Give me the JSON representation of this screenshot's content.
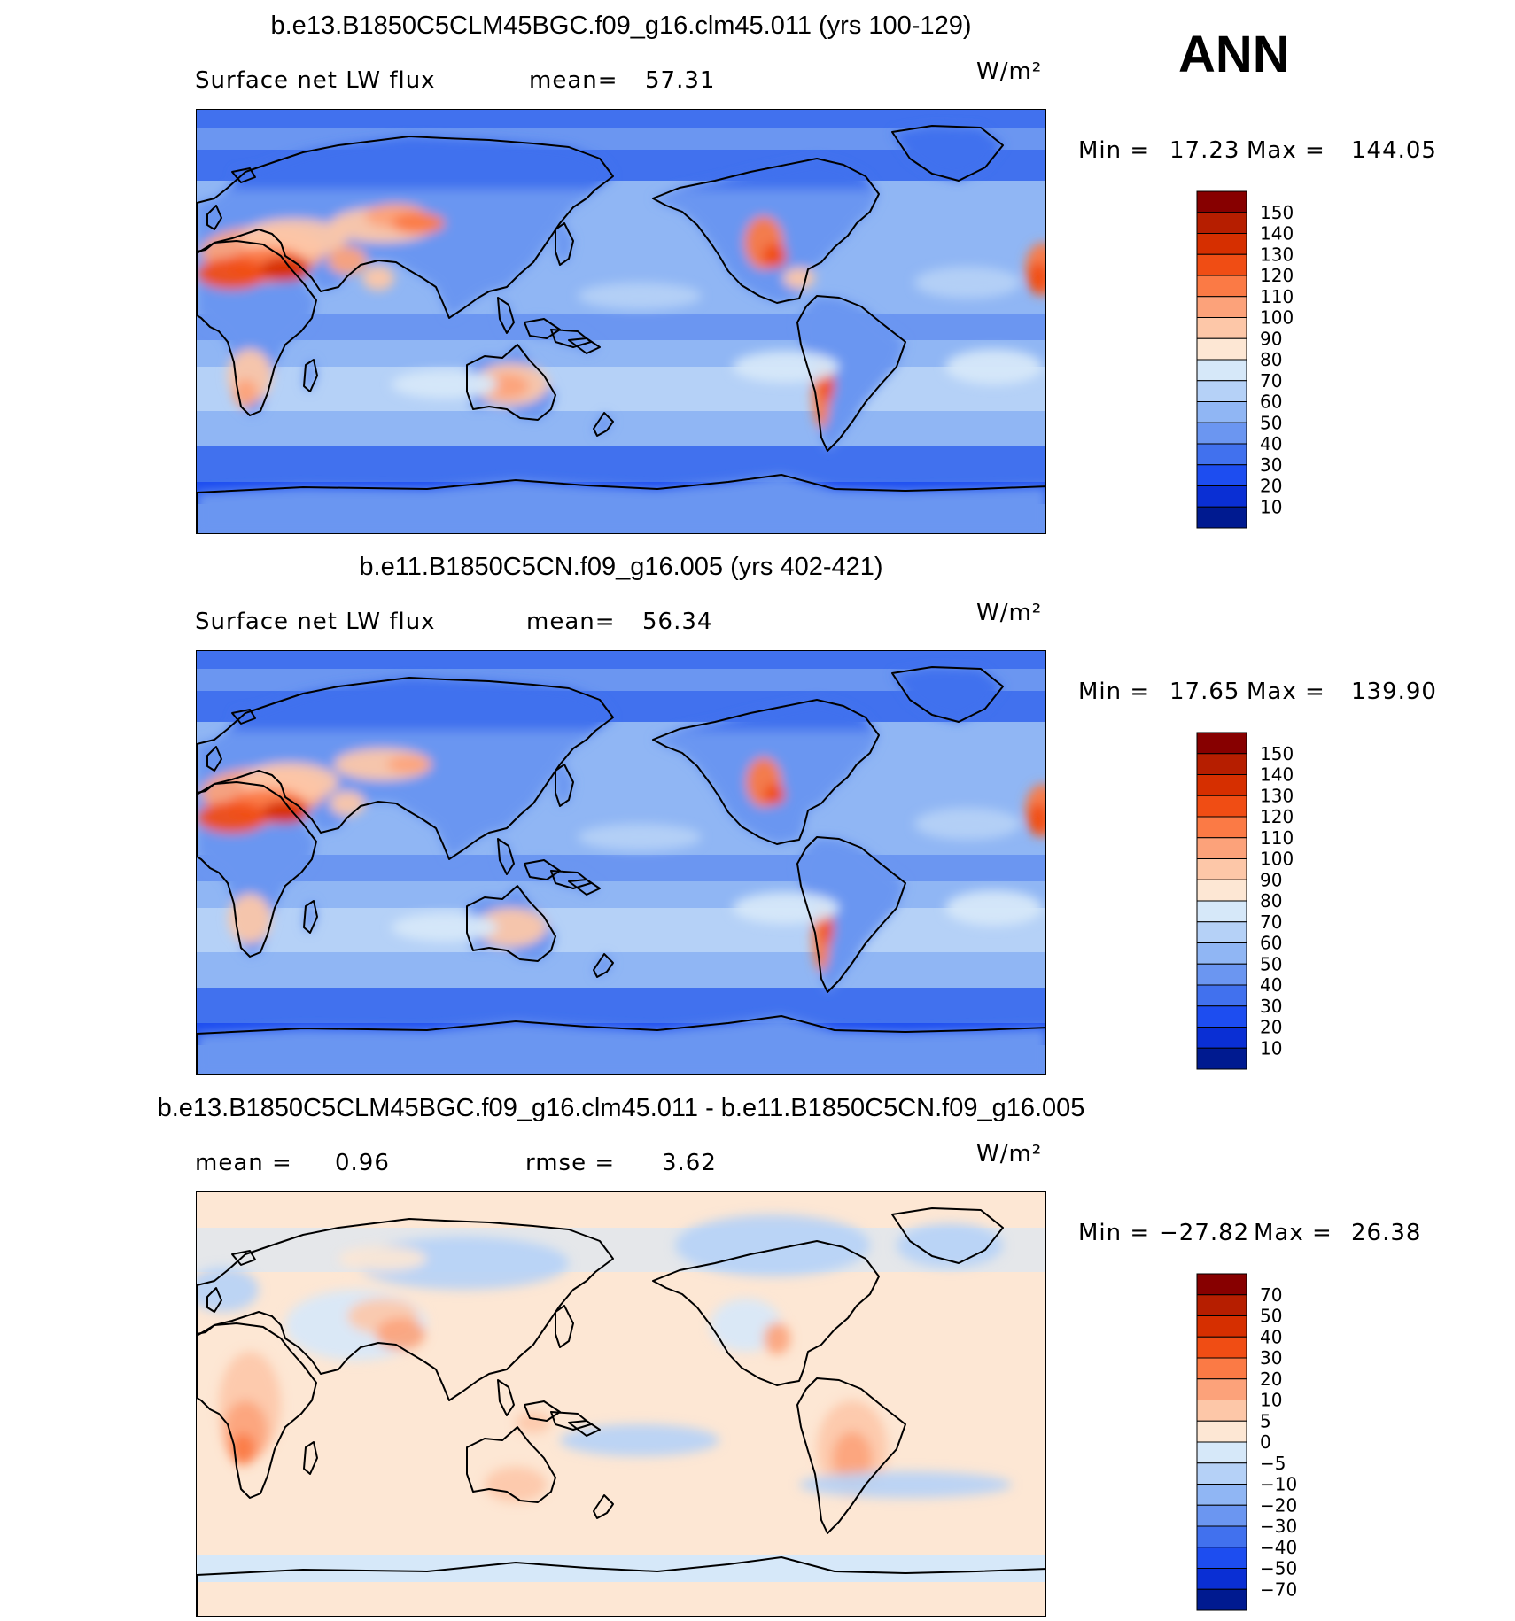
{
  "season": "ANN",
  "panels": [
    {
      "title": "b.e13.B1850C5CLM45BGC.f09_g16.clm45.011 (yrs 100-129)",
      "left_label": "Surface net LW flux",
      "mid_label": "mean=",
      "mid_value": "57.31",
      "units": "W/m²",
      "min_label": "Min =",
      "min_value": "17.23",
      "max_label": "Max =",
      "max_value": "144.05",
      "colorbar": {
        "labels": [
          "150",
          "140",
          "130",
          "120",
          "110",
          "100",
          "90",
          "80",
          "70",
          "60",
          "50",
          "40",
          "30",
          "20",
          "10"
        ],
        "colors": [
          "#870000",
          "#b61e00",
          "#d62f00",
          "#f04d14",
          "#fb7a45",
          "#fca27a",
          "#fdc7a8",
          "#fde7d4",
          "#d6e8f9",
          "#b5d1f7",
          "#90b6f4",
          "#6b96f1",
          "#4171ee",
          "#1d4df0",
          "#0a2fd4",
          "#001a90"
        ]
      },
      "map_palette": "abs"
    },
    {
      "title": "b.e11.B1850C5CN.f09_g16.005 (yrs 402-421)",
      "left_label": "Surface net LW flux",
      "mid_label": "mean=",
      "mid_value": "56.34",
      "units": "W/m²",
      "min_label": "Min =",
      "min_value": "17.65",
      "max_label": "Max =",
      "max_value": "139.90",
      "colorbar": {
        "labels": [
          "150",
          "140",
          "130",
          "120",
          "110",
          "100",
          "90",
          "80",
          "70",
          "60",
          "50",
          "40",
          "30",
          "20",
          "10"
        ],
        "colors": [
          "#870000",
          "#b61e00",
          "#d62f00",
          "#f04d14",
          "#fb7a45",
          "#fca27a",
          "#fdc7a8",
          "#fde7d4",
          "#d6e8f9",
          "#b5d1f7",
          "#90b6f4",
          "#6b96f1",
          "#4171ee",
          "#1d4df0",
          "#0a2fd4",
          "#001a90"
        ]
      },
      "map_palette": "abs"
    },
    {
      "title": "b.e13.B1850C5CLM45BGC.f09_g16.clm45.011 - b.e11.B1850C5CN.f09_g16.005",
      "left_label": "mean =",
      "left_value": "0.96",
      "mid_label": "rmse =",
      "mid_value": "3.62",
      "units": "W/m²",
      "min_label": "Min =",
      "min_value": "−27.82",
      "max_label": "Max =",
      "max_value": "26.38",
      "colorbar": {
        "labels": [
          "70",
          "50",
          "40",
          "30",
          "20",
          "10",
          "5",
          "0",
          "−5",
          "−10",
          "−20",
          "−30",
          "−40",
          "−50",
          "−70"
        ],
        "colors": [
          "#870000",
          "#b61e00",
          "#d62f00",
          "#f04d14",
          "#fb7a45",
          "#fca27a",
          "#fdc7a8",
          "#fde7d4",
          "#d6e8f9",
          "#b5d1f7",
          "#90b6f4",
          "#6b96f1",
          "#4171ee",
          "#1d4df0",
          "#0a2fd4",
          "#001a90"
        ]
      },
      "map_palette": "diff"
    }
  ]
}
